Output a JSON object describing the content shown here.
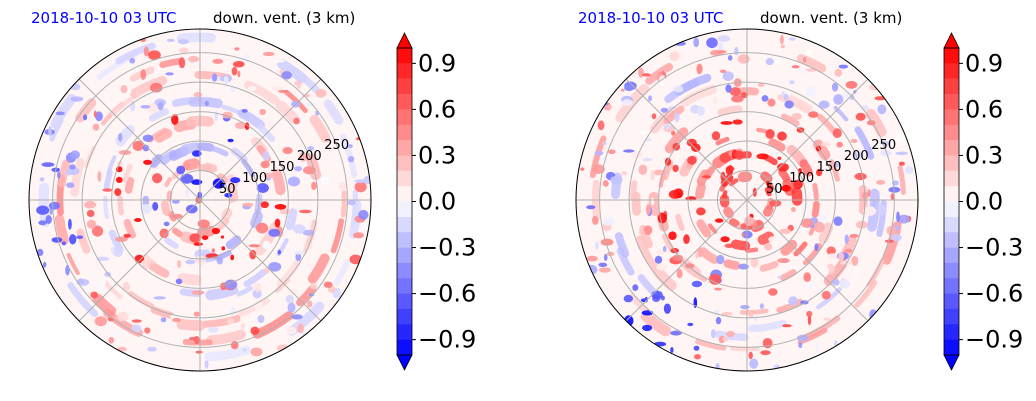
{
  "chart_data": [
    {
      "type": "heatmap",
      "projection": "polar",
      "title_left": "2018-10-10 03 UTC",
      "title_right": "down. vent. (3 km)",
      "radial_ticks": [
        "50",
        "100",
        "150",
        "200",
        "250"
      ],
      "radial_values": [
        50,
        100,
        150,
        200,
        250
      ],
      "colorbar": {
        "ticks": [
          0.9,
          0.6,
          0.3,
          0.0,
          -0.3,
          -0.6,
          -0.9
        ],
        "tick_labels": [
          "0.9",
          "0.6",
          "0.3",
          "0.0",
          "−0.3",
          "−0.6",
          "−0.9"
        ],
        "range": [
          -1.0,
          1.0
        ],
        "extend": "both",
        "colormap": "bwr"
      },
      "colors": {
        "positive": "#ff0000",
        "negative": "#0000ff",
        "neutral": "#ffffff"
      }
    },
    {
      "type": "heatmap",
      "projection": "polar",
      "title_left": "2018-10-10 03 UTC",
      "title_right": "down. vent. (3 km)",
      "radial_ticks": [
        "50",
        "100",
        "150",
        "200",
        "250"
      ],
      "radial_values": [
        50,
        100,
        150,
        200,
        250
      ],
      "colorbar": {
        "ticks": [
          0.9,
          0.6,
          0.3,
          0.0,
          -0.3,
          -0.6,
          -0.9
        ],
        "tick_labels": [
          "0.9",
          "0.6",
          "0.3",
          "0.0",
          "−0.3",
          "−0.6",
          "−0.9"
        ],
        "range": [
          -1.0,
          1.0
        ],
        "extend": "both",
        "colormap": "bwr"
      },
      "colors": {
        "positive": "#ff0000",
        "negative": "#0000ff",
        "neutral": "#ffffff"
      }
    }
  ]
}
